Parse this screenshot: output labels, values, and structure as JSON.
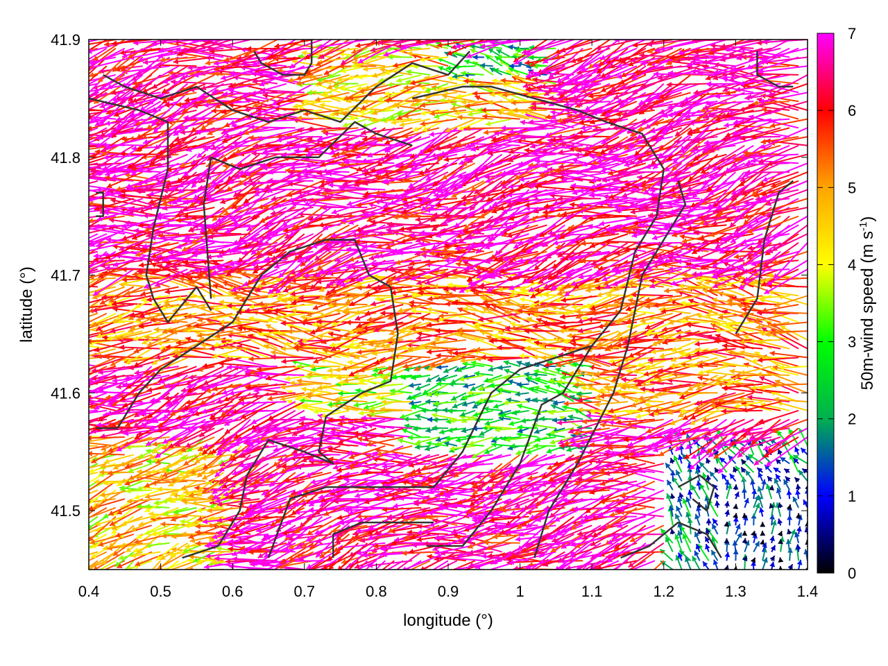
{
  "chart_data": {
    "type": "vector_field",
    "xlabel": "longitude (°)",
    "ylabel": "latitude (°)",
    "xlim": [
      0.4,
      1.4
    ],
    "ylim": [
      41.45,
      41.9
    ],
    "x_ticks": [
      "0.4",
      "0.5",
      "0.6",
      "0.7",
      "0.8",
      "0.9",
      "1",
      "1.1",
      "1.2",
      "1.3",
      "1.4"
    ],
    "x_tick_values": [
      0.4,
      0.5,
      0.6,
      0.7,
      0.8,
      0.9,
      1.0,
      1.1,
      1.2,
      1.3,
      1.4
    ],
    "y_ticks": [
      "41.5",
      "41.6",
      "41.7",
      "41.8",
      "41.9"
    ],
    "y_tick_values": [
      41.5,
      41.6,
      41.7,
      41.8,
      41.9
    ],
    "grid": false,
    "colorbar": {
      "label_main": "50m-wind speed (m s",
      "label_sup": "-1",
      "label_close": ")",
      "min": 0,
      "max": 7,
      "ticks": [
        "0",
        "1",
        "2",
        "3",
        "4",
        "5",
        "6",
        "7"
      ],
      "tick_values": [
        0,
        1,
        2,
        3,
        4,
        5,
        6,
        7
      ],
      "colors": [
        "#000000",
        "#0000ff",
        "#00b050",
        "#00ff00",
        "#ffff00",
        "#ffa500",
        "#ff0000",
        "#ff00ff"
      ]
    },
    "wind_zones": [
      {
        "lon": [
          0.4,
          1.4
        ],
        "lat": [
          41.45,
          41.9
        ],
        "speed": 6.6,
        "dir_deg": 195
      },
      {
        "lon": [
          0.4,
          0.62
        ],
        "lat": [
          41.45,
          41.57
        ],
        "speed": 4.5,
        "dir_deg": 200
      },
      {
        "lon": [
          0.7,
          0.85
        ],
        "lat": [
          41.58,
          41.68
        ],
        "speed": 4.0,
        "dir_deg": 185
      },
      {
        "lon": [
          0.85,
          1.1
        ],
        "lat": [
          41.55,
          41.63
        ],
        "speed": 2.6,
        "dir_deg": 180
      },
      {
        "lon": [
          1.2,
          1.4
        ],
        "lat": [
          41.45,
          41.56
        ],
        "speed": 1.6,
        "dir_deg": 120
      },
      {
        "lon": [
          1.28,
          1.4
        ],
        "lat": [
          41.45,
          41.52
        ],
        "speed": 0.9,
        "dir_deg": 90
      },
      {
        "lon": [
          0.72,
          1.05
        ],
        "lat": [
          41.83,
          41.9
        ],
        "speed": 4.6,
        "dir_deg": 180
      },
      {
        "lon": [
          0.9,
          1.05
        ],
        "lat": [
          41.87,
          41.9
        ],
        "speed": 2.5,
        "dir_deg": 175
      },
      {
        "lon": [
          0.4,
          1.4
        ],
        "lat": [
          41.63,
          41.7
        ],
        "speed": 5.2,
        "dir_deg": 182
      },
      {
        "lon": [
          1.1,
          1.4
        ],
        "lat": [
          41.58,
          41.65
        ],
        "speed": 5.3,
        "dir_deg": 180
      }
    ],
    "boundaries": [
      [
        [
          0.42,
          41.87
        ],
        [
          0.45,
          41.86
        ],
        [
          0.5,
          41.85
        ],
        [
          0.55,
          41.86
        ],
        [
          0.6,
          41.84
        ],
        [
          0.65,
          41.83
        ],
        [
          0.7,
          41.84
        ],
        [
          0.75,
          41.83
        ],
        [
          0.8,
          41.86
        ],
        [
          0.85,
          41.88
        ],
        [
          0.9,
          41.87
        ],
        [
          0.93,
          41.89
        ]
      ],
      [
        [
          0.4,
          41.85
        ],
        [
          0.47,
          41.84
        ],
        [
          0.51,
          41.83
        ],
        [
          0.51,
          41.79
        ],
        [
          0.49,
          41.74
        ],
        [
          0.48,
          41.7
        ],
        [
          0.49,
          41.68
        ],
        [
          0.51,
          41.66
        ],
        [
          0.55,
          41.69
        ],
        [
          0.57,
          41.67
        ]
      ],
      [
        [
          0.57,
          41.68
        ],
        [
          0.56,
          41.76
        ],
        [
          0.57,
          41.8
        ],
        [
          0.61,
          41.79
        ],
        [
          0.66,
          41.8
        ],
        [
          0.72,
          41.8
        ],
        [
          0.77,
          41.83
        ],
        [
          0.8,
          41.82
        ],
        [
          0.85,
          41.81
        ]
      ],
      [
        [
          0.41,
          41.57
        ],
        [
          0.44,
          41.57
        ],
        [
          0.47,
          41.6
        ],
        [
          0.5,
          41.62
        ],
        [
          0.55,
          41.64
        ],
        [
          0.6,
          41.66
        ],
        [
          0.64,
          41.7
        ],
        [
          0.68,
          41.72
        ],
        [
          0.73,
          41.73
        ],
        [
          0.77,
          41.73
        ],
        [
          0.79,
          41.7
        ],
        [
          0.82,
          41.69
        ]
      ],
      [
        [
          0.82,
          41.69
        ],
        [
          0.83,
          41.65
        ],
        [
          0.82,
          41.61
        ],
        [
          0.78,
          41.6
        ],
        [
          0.73,
          41.58
        ],
        [
          0.72,
          41.55
        ],
        [
          0.74,
          41.54
        ],
        [
          0.7,
          41.55
        ],
        [
          0.65,
          41.56
        ],
        [
          0.62,
          41.53
        ],
        [
          0.61,
          41.5
        ],
        [
          0.58,
          41.47
        ],
        [
          0.53,
          41.46
        ]
      ],
      [
        [
          0.65,
          41.46
        ],
        [
          0.68,
          41.51
        ],
        [
          0.73,
          41.52
        ],
        [
          0.78,
          41.52
        ],
        [
          0.83,
          41.52
        ],
        [
          0.88,
          41.52
        ],
        [
          0.92,
          41.55
        ],
        [
          0.96,
          41.6
        ],
        [
          1.0,
          41.62
        ],
        [
          1.05,
          41.63
        ],
        [
          1.1,
          41.64
        ],
        [
          1.14,
          41.67
        ],
        [
          1.16,
          41.72
        ],
        [
          1.19,
          41.75
        ],
        [
          1.2,
          41.79
        ],
        [
          1.17,
          41.82
        ],
        [
          1.12,
          41.83
        ],
        [
          1.08,
          41.84
        ],
        [
          1.02,
          41.85
        ],
        [
          0.96,
          41.86
        ],
        [
          0.92,
          41.86
        ],
        [
          0.85,
          41.85
        ]
      ],
      [
        [
          1.02,
          41.46
        ],
        [
          1.04,
          41.5
        ],
        [
          1.08,
          41.54
        ],
        [
          1.13,
          41.6
        ],
        [
          1.15,
          41.64
        ],
        [
          1.17,
          41.7
        ],
        [
          1.2,
          41.73
        ],
        [
          1.23,
          41.76
        ],
        [
          1.22,
          41.78
        ]
      ],
      [
        [
          0.87,
          41.47
        ],
        [
          0.92,
          41.47
        ],
        [
          0.96,
          41.5
        ],
        [
          1.0,
          41.54
        ],
        [
          1.03,
          41.59
        ],
        [
          1.06,
          41.6
        ],
        [
          1.1,
          41.64
        ]
      ],
      [
        [
          1.14,
          41.46
        ],
        [
          1.18,
          41.47
        ],
        [
          1.22,
          41.49
        ],
        [
          1.26,
          41.48
        ],
        [
          1.28,
          41.46
        ]
      ],
      [
        [
          1.22,
          41.52
        ],
        [
          1.25,
          41.53
        ],
        [
          1.27,
          41.52
        ],
        [
          1.26,
          41.5
        ],
        [
          1.24,
          41.51
        ]
      ],
      [
        [
          1.3,
          41.65
        ],
        [
          1.33,
          41.68
        ],
        [
          1.34,
          41.73
        ],
        [
          1.36,
          41.77
        ],
        [
          1.38,
          41.78
        ]
      ],
      [
        [
          1.33,
          41.89
        ],
        [
          1.33,
          41.87
        ],
        [
          1.36,
          41.86
        ],
        [
          1.38,
          41.86
        ]
      ],
      [
        [
          0.63,
          41.89
        ],
        [
          0.64,
          41.88
        ],
        [
          0.67,
          41.87
        ],
        [
          0.7,
          41.87
        ],
        [
          0.71,
          41.88
        ],
        [
          0.71,
          41.9
        ]
      ],
      [
        [
          0.74,
          41.46
        ],
        [
          0.74,
          41.48
        ],
        [
          0.78,
          41.49
        ],
        [
          0.84,
          41.49
        ],
        [
          0.88,
          41.49
        ]
      ],
      [
        [
          0.41,
          41.75
        ],
        [
          0.42,
          41.75
        ],
        [
          0.42,
          41.77
        ],
        [
          0.41,
          41.77
        ]
      ]
    ]
  }
}
